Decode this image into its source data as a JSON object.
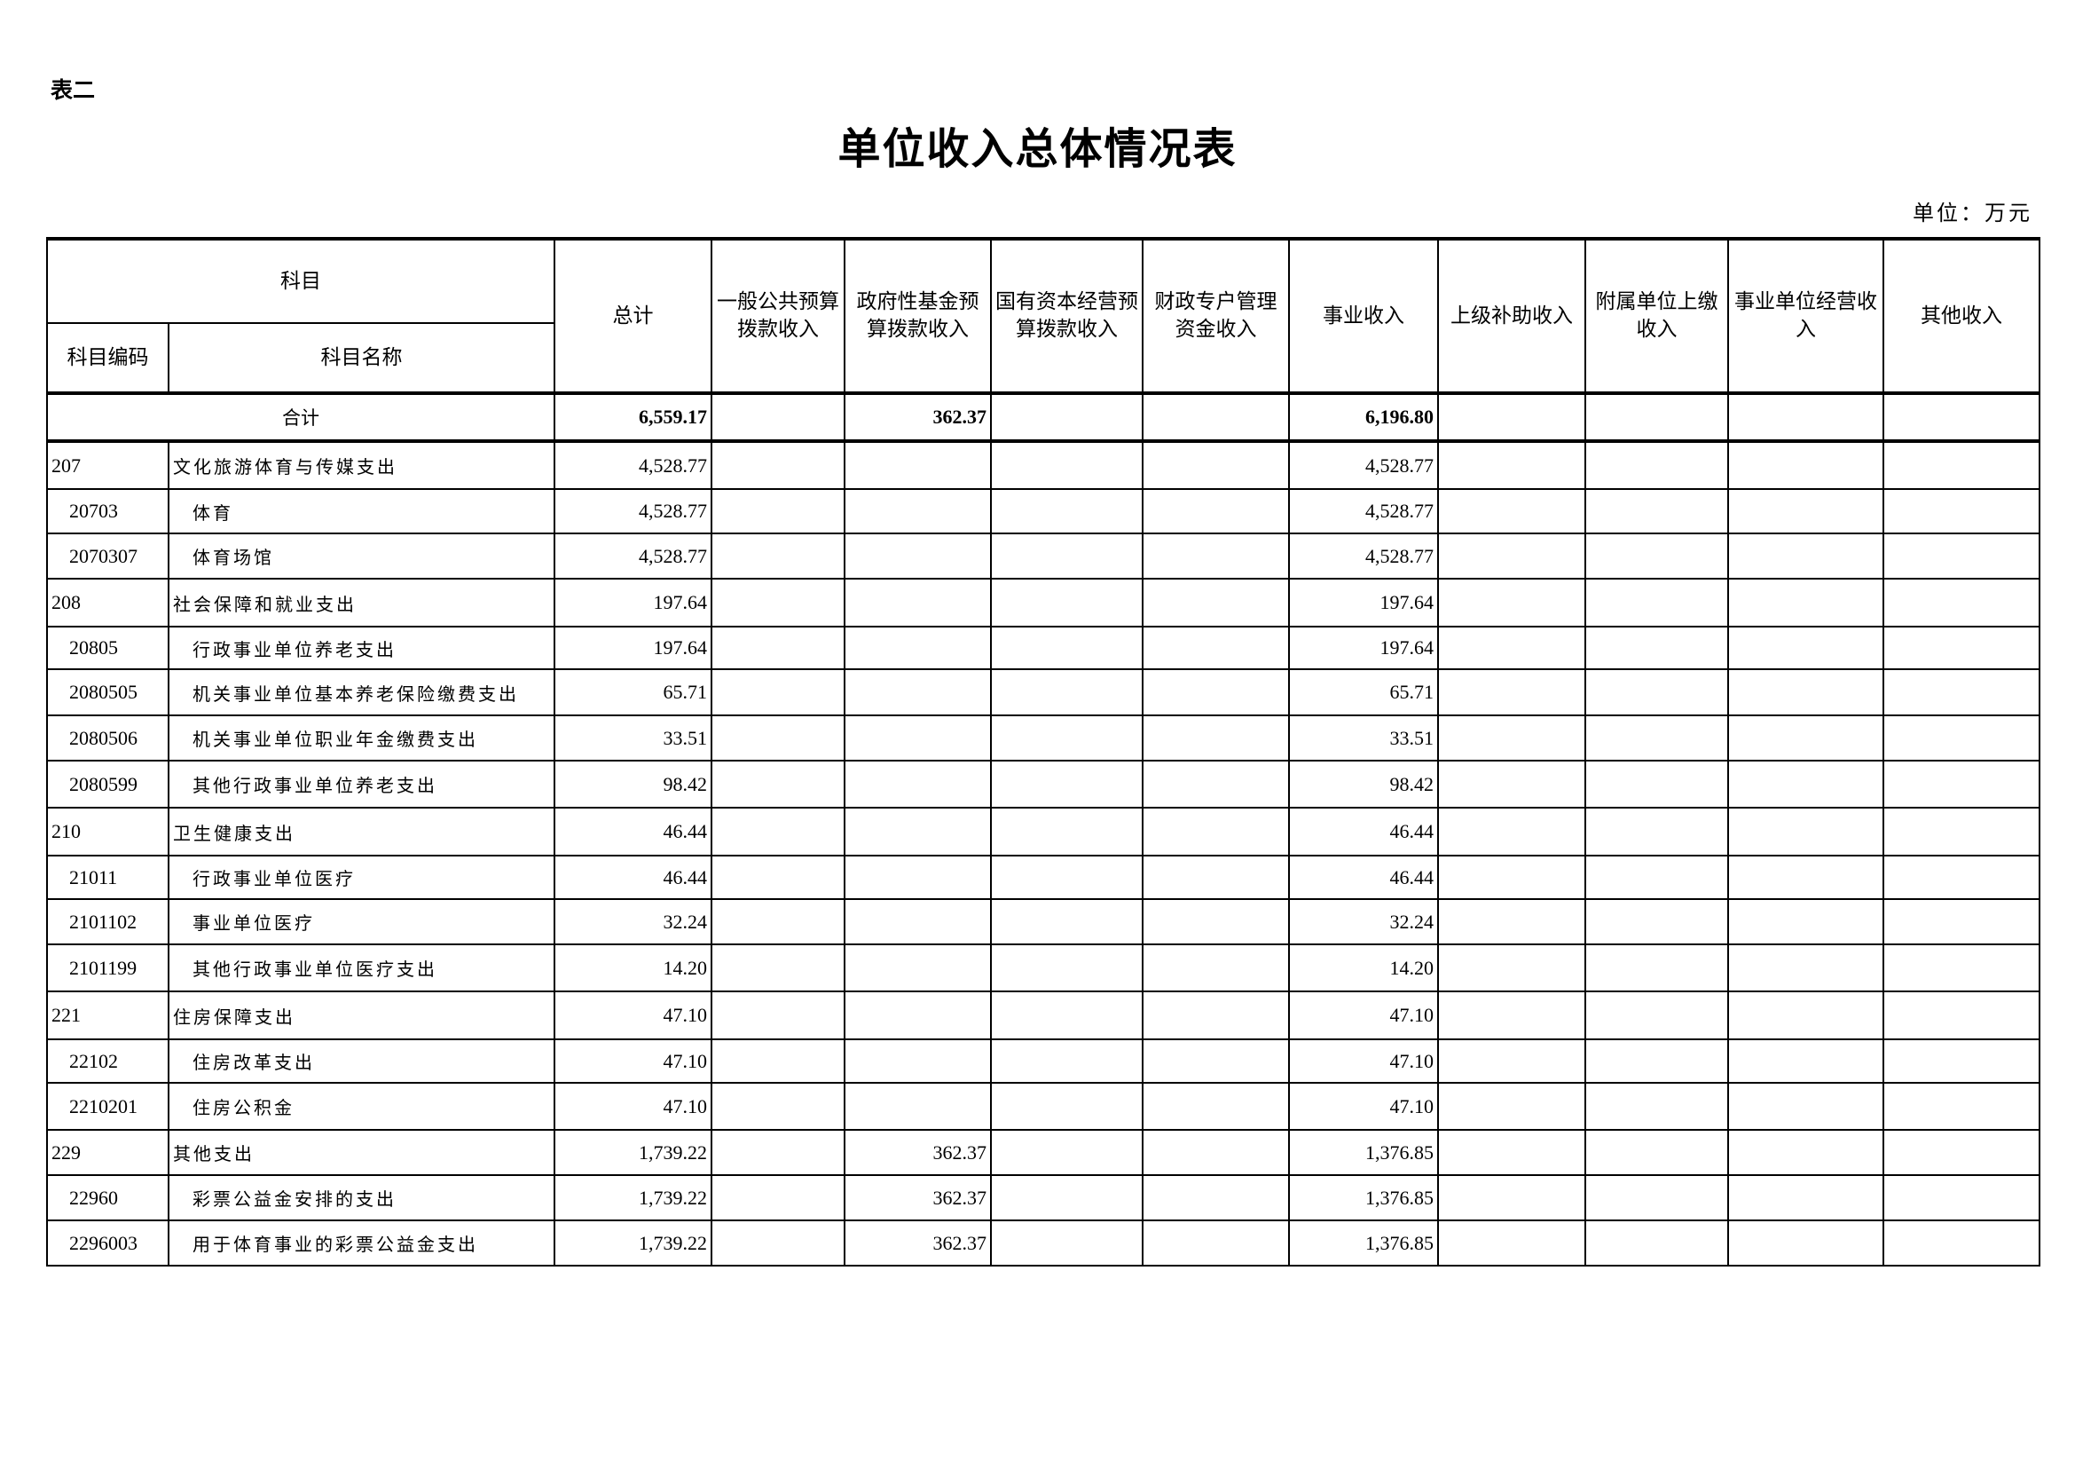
{
  "doc": {
    "tag": "表二",
    "title": "单位收入总体情况表",
    "unit": "单位：万元"
  },
  "headers": {
    "subject": "科目",
    "code": "科目编码",
    "name": "科目名称",
    "cols": [
      "总计",
      "一般公共预算拨款收入",
      "政府性基金预算拨款收入",
      "国有资本经营预算拨款收入",
      "财政专户管理资金收入",
      "事业收入",
      "上级补助收入",
      "附属单位上缴收入",
      "事业单位经营收入",
      "其他收入"
    ]
  },
  "total": {
    "label": "合计",
    "values": [
      "6,559.17",
      "",
      "362.37",
      "",
      "",
      "6,196.80",
      "",
      "",
      "",
      ""
    ]
  },
  "rows": [
    {
      "code": "207",
      "name": "文化旅游体育与传媒支出",
      "level": 1,
      "values": [
        "4,528.77",
        "",
        "",
        "",
        "",
        "4,528.77",
        "",
        "",
        "",
        ""
      ]
    },
    {
      "code": "20703",
      "name": "体育",
      "level": 2,
      "values": [
        "4,528.77",
        "",
        "",
        "",
        "",
        "4,528.77",
        "",
        "",
        "",
        ""
      ]
    },
    {
      "code": "2070307",
      "name": "体育场馆",
      "level": 2,
      "values": [
        "4,528.77",
        "",
        "",
        "",
        "",
        "4,528.77",
        "",
        "",
        "",
        ""
      ]
    },
    {
      "code": "208",
      "name": "社会保障和就业支出",
      "level": 1,
      "values": [
        "197.64",
        "",
        "",
        "",
        "",
        "197.64",
        "",
        "",
        "",
        ""
      ]
    },
    {
      "code": "20805",
      "name": "行政事业单位养老支出",
      "level": 2,
      "values": [
        "197.64",
        "",
        "",
        "",
        "",
        "197.64",
        "",
        "",
        "",
        ""
      ]
    },
    {
      "code": "2080505",
      "name": "机关事业单位基本养老保险缴费支出",
      "level": 2,
      "values": [
        "65.71",
        "",
        "",
        "",
        "",
        "65.71",
        "",
        "",
        "",
        ""
      ]
    },
    {
      "code": "2080506",
      "name": "机关事业单位职业年金缴费支出",
      "level": 2,
      "values": [
        "33.51",
        "",
        "",
        "",
        "",
        "33.51",
        "",
        "",
        "",
        ""
      ]
    },
    {
      "code": "2080599",
      "name": "其他行政事业单位养老支出",
      "level": 2,
      "values": [
        "98.42",
        "",
        "",
        "",
        "",
        "98.42",
        "",
        "",
        "",
        ""
      ]
    },
    {
      "code": "210",
      "name": "卫生健康支出",
      "level": 1,
      "values": [
        "46.44",
        "",
        "",
        "",
        "",
        "46.44",
        "",
        "",
        "",
        ""
      ]
    },
    {
      "code": "21011",
      "name": "行政事业单位医疗",
      "level": 2,
      "values": [
        "46.44",
        "",
        "",
        "",
        "",
        "46.44",
        "",
        "",
        "",
        ""
      ]
    },
    {
      "code": "2101102",
      "name": "事业单位医疗",
      "level": 2,
      "values": [
        "32.24",
        "",
        "",
        "",
        "",
        "32.24",
        "",
        "",
        "",
        ""
      ]
    },
    {
      "code": "2101199",
      "name": "其他行政事业单位医疗支出",
      "level": 2,
      "values": [
        "14.20",
        "",
        "",
        "",
        "",
        "14.20",
        "",
        "",
        "",
        ""
      ]
    },
    {
      "code": "221",
      "name": "住房保障支出",
      "level": 1,
      "values": [
        "47.10",
        "",
        "",
        "",
        "",
        "47.10",
        "",
        "",
        "",
        ""
      ]
    },
    {
      "code": "22102",
      "name": "住房改革支出",
      "level": 2,
      "values": [
        "47.10",
        "",
        "",
        "",
        "",
        "47.10",
        "",
        "",
        "",
        ""
      ]
    },
    {
      "code": "2210201",
      "name": "住房公积金",
      "level": 2,
      "values": [
        "47.10",
        "",
        "",
        "",
        "",
        "47.10",
        "",
        "",
        "",
        ""
      ]
    },
    {
      "code": "229",
      "name": "其他支出",
      "level": 1,
      "values": [
        "1,739.22",
        "",
        "362.37",
        "",
        "",
        "1,376.85",
        "",
        "",
        "",
        ""
      ]
    },
    {
      "code": "22960",
      "name": "彩票公益金安排的支出",
      "level": 2,
      "values": [
        "1,739.22",
        "",
        "362.37",
        "",
        "",
        "1,376.85",
        "",
        "",
        "",
        ""
      ]
    },
    {
      "code": "2296003",
      "name": "用于体育事业的彩票公益金支出",
      "level": 2,
      "values": [
        "1,739.22",
        "",
        "362.37",
        "",
        "",
        "1,376.85",
        "",
        "",
        "",
        ""
      ]
    }
  ]
}
